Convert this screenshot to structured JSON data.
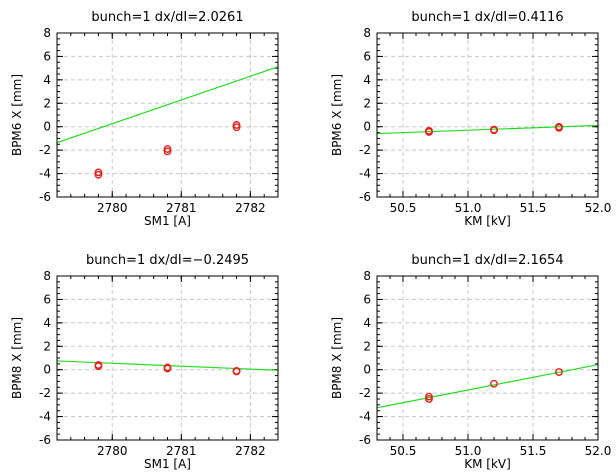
{
  "chart_data": [
    {
      "type": "scatter",
      "title": "bunch=1   dx/dI=2.0261",
      "xlabel": "SM1 [A]",
      "ylabel": "BPM6 X [mm]",
      "xlim": [
        2779.2,
        2782.4
      ],
      "ylim": [
        -6,
        8
      ],
      "xticks": [
        2780,
        2781,
        2782
      ],
      "yticks": [
        -6,
        -4,
        -2,
        0,
        2,
        4,
        6,
        8
      ],
      "grid": true,
      "points": [
        {
          "x": 2779.8,
          "y": -4.1
        },
        {
          "x": 2779.8,
          "y": -3.9
        },
        {
          "x": 2780.8,
          "y": -2.1
        },
        {
          "x": 2780.8,
          "y": -1.9
        },
        {
          "x": 2781.8,
          "y": 0.15
        },
        {
          "x": 2781.8,
          "y": -0.05
        }
      ],
      "fit": {
        "slope": 2.0261,
        "intercept": -5632.3
      },
      "colors": {
        "points": "#e8201a",
        "fit": "#22dd22"
      }
    },
    {
      "type": "scatter",
      "title": "bunch=1   dx/dI=0.4116",
      "xlabel": "KM [kV]",
      "ylabel": "BPM6 X [mm]",
      "xlim": [
        50.3,
        52.0
      ],
      "ylim": [
        -6,
        8
      ],
      "xticks": [
        50.5,
        51.0,
        51.5,
        52.0
      ],
      "yticks": [
        -6,
        -4,
        -2,
        0,
        2,
        4,
        6,
        8
      ],
      "grid": true,
      "points": [
        {
          "x": 50.7,
          "y": -0.45
        },
        {
          "x": 50.7,
          "y": -0.35
        },
        {
          "x": 51.2,
          "y": -0.3
        },
        {
          "x": 51.2,
          "y": -0.25
        },
        {
          "x": 51.7,
          "y": 0.0
        },
        {
          "x": 51.7,
          "y": -0.1
        }
      ],
      "fit": {
        "slope": 0.4116,
        "intercept": -21.29
      },
      "colors": {
        "points": "#e8201a",
        "fit": "#22dd22"
      }
    },
    {
      "type": "scatter",
      "title": "bunch=1   dx/dI=−0.2495",
      "xlabel": "SM1 [A]",
      "ylabel": "BPM8 X [mm]",
      "xlim": [
        2779.2,
        2782.4
      ],
      "ylim": [
        -6,
        8
      ],
      "xticks": [
        2780,
        2781,
        2782
      ],
      "yticks": [
        -6,
        -4,
        -2,
        0,
        2,
        4,
        6,
        8
      ],
      "grid": true,
      "points": [
        {
          "x": 2779.8,
          "y": 0.4
        },
        {
          "x": 2779.8,
          "y": 0.3
        },
        {
          "x": 2780.8,
          "y": 0.2
        },
        {
          "x": 2780.8,
          "y": 0.1
        },
        {
          "x": 2781.8,
          "y": -0.1
        },
        {
          "x": 2781.8,
          "y": -0.15
        }
      ],
      "fit": {
        "slope": -0.2495,
        "intercept": 694.16
      },
      "colors": {
        "points": "#e8201a",
        "fit": "#22dd22"
      }
    },
    {
      "type": "scatter",
      "title": "bunch=1   dx/dI=2.1654",
      "xlabel": "KM [kV]",
      "ylabel": "BPM8 X [mm]",
      "xlim": [
        50.3,
        52.0
      ],
      "ylim": [
        -6,
        8
      ],
      "xticks": [
        50.5,
        51.0,
        51.5,
        52.0
      ],
      "yticks": [
        -6,
        -4,
        -2,
        0,
        2,
        4,
        6,
        8
      ],
      "grid": true,
      "points": [
        {
          "x": 50.7,
          "y": -2.5
        },
        {
          "x": 50.7,
          "y": -2.3
        },
        {
          "x": 51.2,
          "y": -1.2
        },
        {
          "x": 51.7,
          "y": -0.2
        }
      ],
      "fit": {
        "slope": 2.1654,
        "intercept": -112.17
      },
      "colors": {
        "points": "#e8201a",
        "fit": "#22dd22"
      }
    }
  ]
}
